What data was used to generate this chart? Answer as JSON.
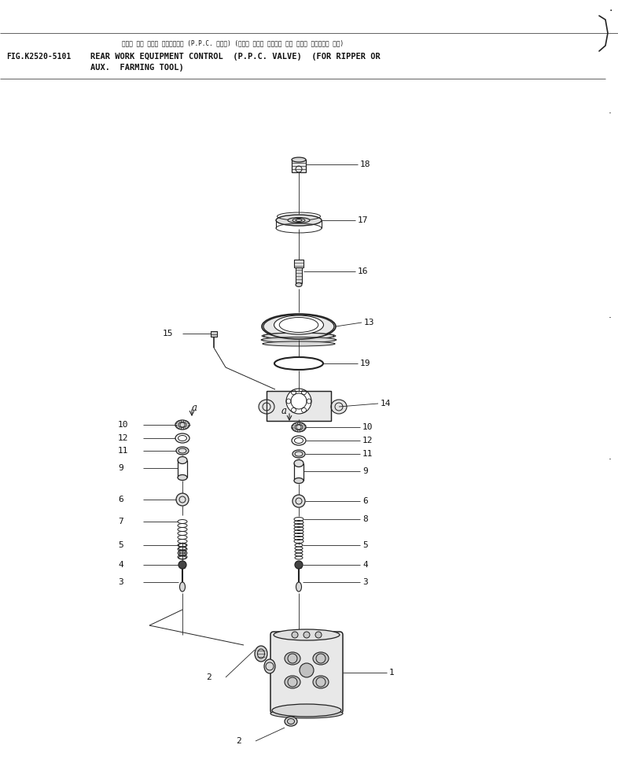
{
  "fig_number": "FIG.K2520-5101",
  "title_jp": "リヤー サギ ヨウキ コントロール（P．P．C． バルブ）（リッパ マタハ ノウコウ サギ ヨウキ ソウチャク ヨウ）",
  "title_en1": "REAR WORK EQUIPMENT CONTROL  (P.P.C. VALVE)  (FOR RIPPER OR",
  "title_en2": "AUX.  FARMING TOOL)",
  "bg_color": "#ffffff",
  "line_color": "#222222",
  "text_color": "#111111"
}
